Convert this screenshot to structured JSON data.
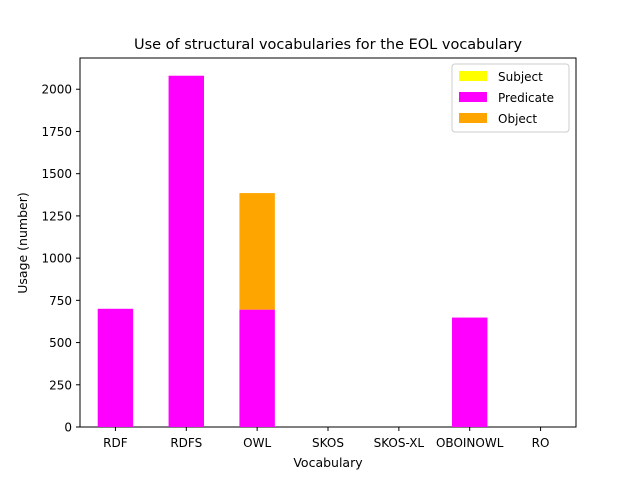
{
  "chart_data": {
    "type": "bar",
    "stacked": true,
    "title": "Use of structural vocabularies for the EOL vocabulary",
    "xlabel": "Vocabulary",
    "ylabel": "Usage (number)",
    "categories": [
      "RDF",
      "RDFS",
      "OWL",
      "SKOS",
      "SKOS-XL",
      "OBOINOWL",
      "RO"
    ],
    "series": [
      {
        "name": "Subject",
        "color": "#ffff00",
        "values": [
          0,
          0,
          0,
          0,
          0,
          0,
          0
        ]
      },
      {
        "name": "Predicate",
        "color": "#ff00ff",
        "values": [
          700,
          2080,
          695,
          0,
          0,
          648,
          0
        ]
      },
      {
        "name": "Object",
        "color": "#ffa500",
        "values": [
          0,
          0,
          690,
          0,
          0,
          0,
          0
        ]
      }
    ],
    "ylim": [
      0,
      2185
    ],
    "yticks": [
      0,
      250,
      500,
      750,
      1000,
      1250,
      1500,
      1750,
      2000
    ],
    "grid": false,
    "legend_position": "top-right"
  }
}
